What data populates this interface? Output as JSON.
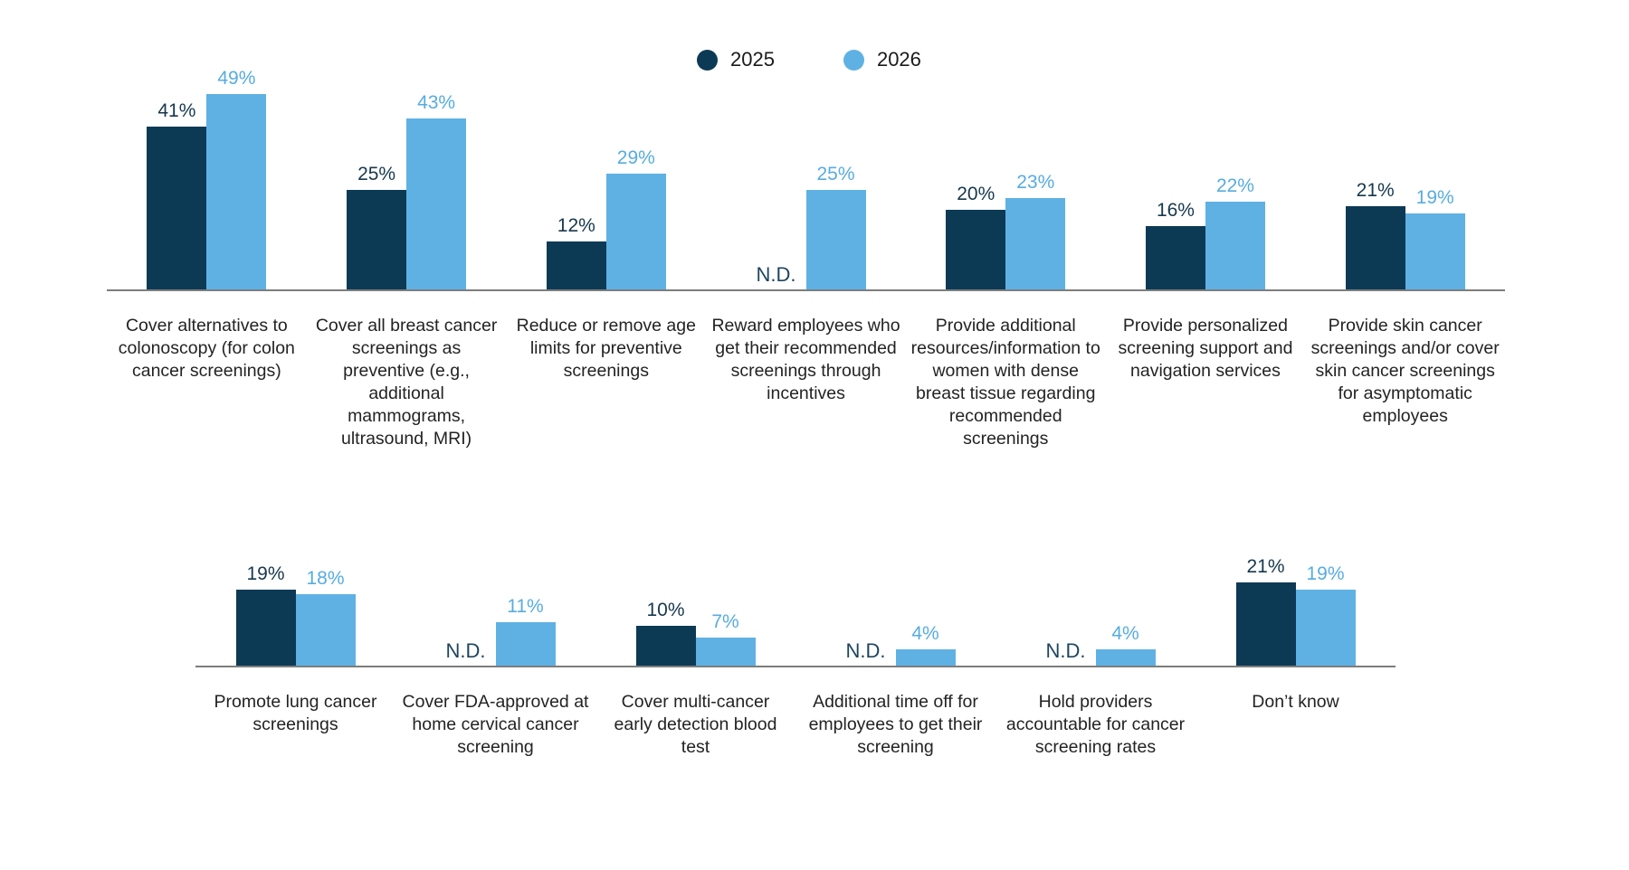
{
  "legend": {
    "series": [
      {
        "label": "2025",
        "color": "#0c3a55"
      },
      {
        "label": "2026",
        "color": "#5fb1e3"
      }
    ]
  },
  "no_data_label": "N.D.",
  "colors": {
    "series_2025": "#0c3a55",
    "series_2026": "#5fb1e3",
    "value_2025": "#17384d",
    "value_2026": "#57ace0",
    "nd": "#1d4560",
    "axis": "#7d7d7d",
    "category_text": "#232323"
  },
  "chart_data": {
    "type": "bar",
    "series": [
      "2025",
      "2026"
    ],
    "unit": "percent",
    "ylim": [
      0,
      55
    ],
    "grid": false,
    "legend_position": "top-center",
    "rows": [
      {
        "groups": [
          {
            "category": "Cover alternatives to colonoscopy (for colon cancer screenings)",
            "values": [
              41,
              49
            ],
            "labels": [
              "41%",
              "49%"
            ]
          },
          {
            "category": "Cover all breast cancer screenings as preventive (e.g., additional mammograms, ultrasound, MRI)",
            "values": [
              25,
              43
            ],
            "labels": [
              "25%",
              "43%"
            ]
          },
          {
            "category": "Reduce or remove age limits for preventive screenings",
            "values": [
              12,
              29
            ],
            "labels": [
              "12%",
              "29%"
            ]
          },
          {
            "category": "Reward employees who get their recommended screenings through incentives",
            "values": [
              null,
              25
            ],
            "labels": [
              "N.D.",
              "25%"
            ]
          },
          {
            "category": "Provide additional resources/information to women with dense breast tissue regarding recommended screenings",
            "values": [
              20,
              23
            ],
            "labels": [
              "20%",
              "23%"
            ]
          },
          {
            "category": "Provide personalized screening support and navigation services",
            "values": [
              16,
              22
            ],
            "labels": [
              "16%",
              "22%"
            ]
          },
          {
            "category": "Provide skin cancer screenings and/or cover skin cancer screenings for asymptomatic employees",
            "values": [
              21,
              19
            ],
            "labels": [
              "21%",
              "19%"
            ]
          }
        ]
      },
      {
        "groups": [
          {
            "category": "Promote lung cancer screenings",
            "values": [
              19,
              18
            ],
            "labels": [
              "19%",
              "18%"
            ]
          },
          {
            "category": "Cover FDA-approved at home cervical cancer screening",
            "values": [
              null,
              11
            ],
            "labels": [
              "N.D.",
              "11%"
            ]
          },
          {
            "category": "Cover multi-cancer early detection blood test",
            "values": [
              10,
              7
            ],
            "labels": [
              "10%",
              "7%"
            ]
          },
          {
            "category": "Additional time off for employees to get their screening",
            "values": [
              null,
              4
            ],
            "labels": [
              "N.D.",
              "4%"
            ]
          },
          {
            "category": "Hold providers accountable for cancer screening rates",
            "values": [
              null,
              4
            ],
            "labels": [
              "N.D.",
              "4%"
            ]
          },
          {
            "category": "Don’t know",
            "values": [
              21,
              19
            ],
            "labels": [
              "21%",
              "19%"
            ]
          }
        ]
      }
    ]
  }
}
